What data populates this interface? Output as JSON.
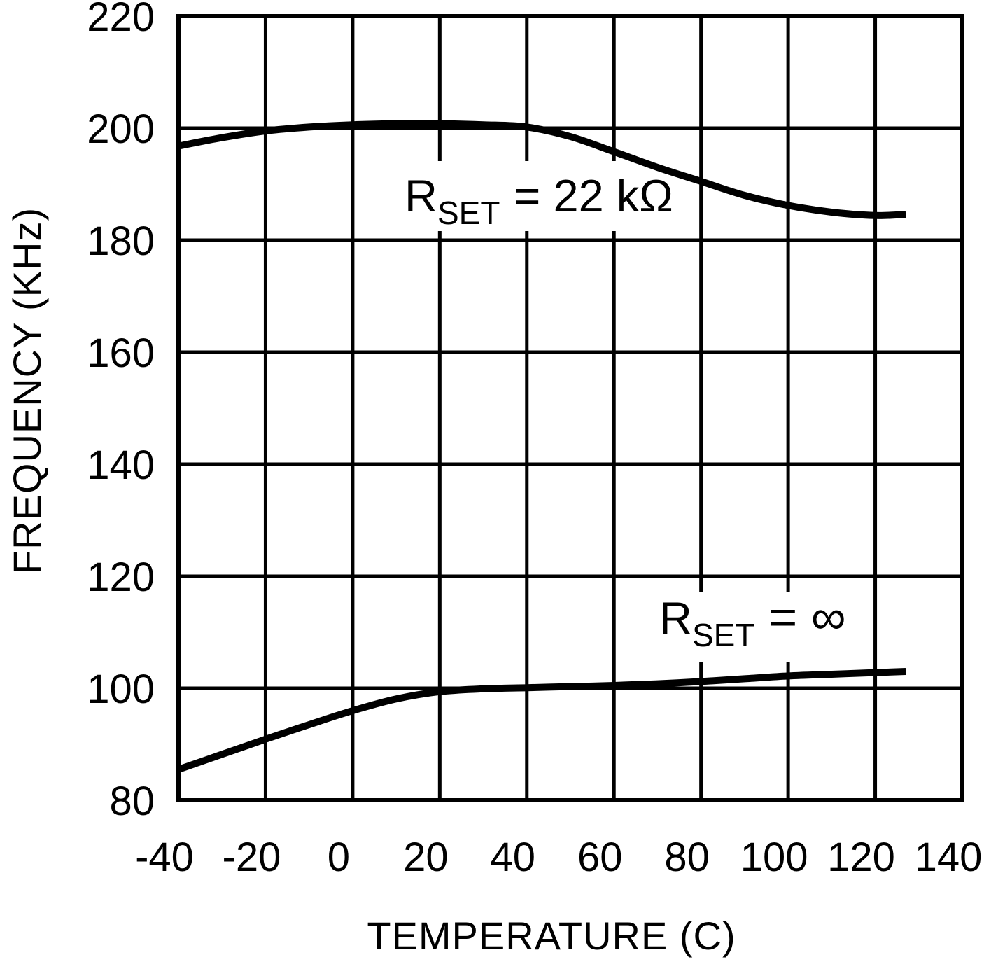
{
  "figure": {
    "background": "#ffffff",
    "foreground": "#000000"
  },
  "chart_data": {
    "type": "line",
    "title": "",
    "xlabel": "TEMPERATURE (C)",
    "ylabel": "FREQUENCY (KHz)",
    "xlim": [
      -40,
      140
    ],
    "ylim": [
      80,
      220
    ],
    "x_ticks": [
      "-40",
      "-20",
      "0",
      "20",
      "40",
      "60",
      "80",
      "100",
      "120",
      "140"
    ],
    "y_ticks": [
      "80",
      "100",
      "120",
      "140",
      "160",
      "180",
      "200",
      "220"
    ],
    "grid": "on",
    "legend_position": "inline-annotations",
    "line_color": "#000000",
    "series": [
      {
        "name": "RSET = 22 kOhm",
        "annotation": {
          "prefix": "R",
          "sub": "SET",
          "rest": "= 22 kΩ"
        },
        "x": [
          -40,
          -30,
          -20,
          -10,
          0,
          10,
          20,
          30,
          40,
          50,
          60,
          70,
          80,
          90,
          100,
          110,
          120,
          127
        ],
        "values": [
          196.8,
          198.3,
          199.5,
          200.2,
          200.6,
          200.8,
          200.8,
          200.6,
          200.2,
          198.5,
          195.8,
          193.0,
          190.5,
          188.0,
          186.2,
          185.0,
          184.4,
          184.6
        ]
      },
      {
        "name": "RSET = infinity",
        "annotation": {
          "prefix": "R",
          "sub": "SET",
          "rest": "= ∞"
        },
        "x": [
          -40,
          -30,
          -20,
          -10,
          0,
          10,
          20,
          30,
          40,
          50,
          60,
          70,
          80,
          90,
          100,
          110,
          120,
          127
        ],
        "values": [
          85.5,
          88.2,
          90.9,
          93.5,
          96.0,
          98.1,
          99.4,
          99.9,
          100.1,
          100.3,
          100.5,
          100.8,
          101.2,
          101.7,
          102.2,
          102.5,
          102.8,
          103.0
        ]
      }
    ]
  }
}
